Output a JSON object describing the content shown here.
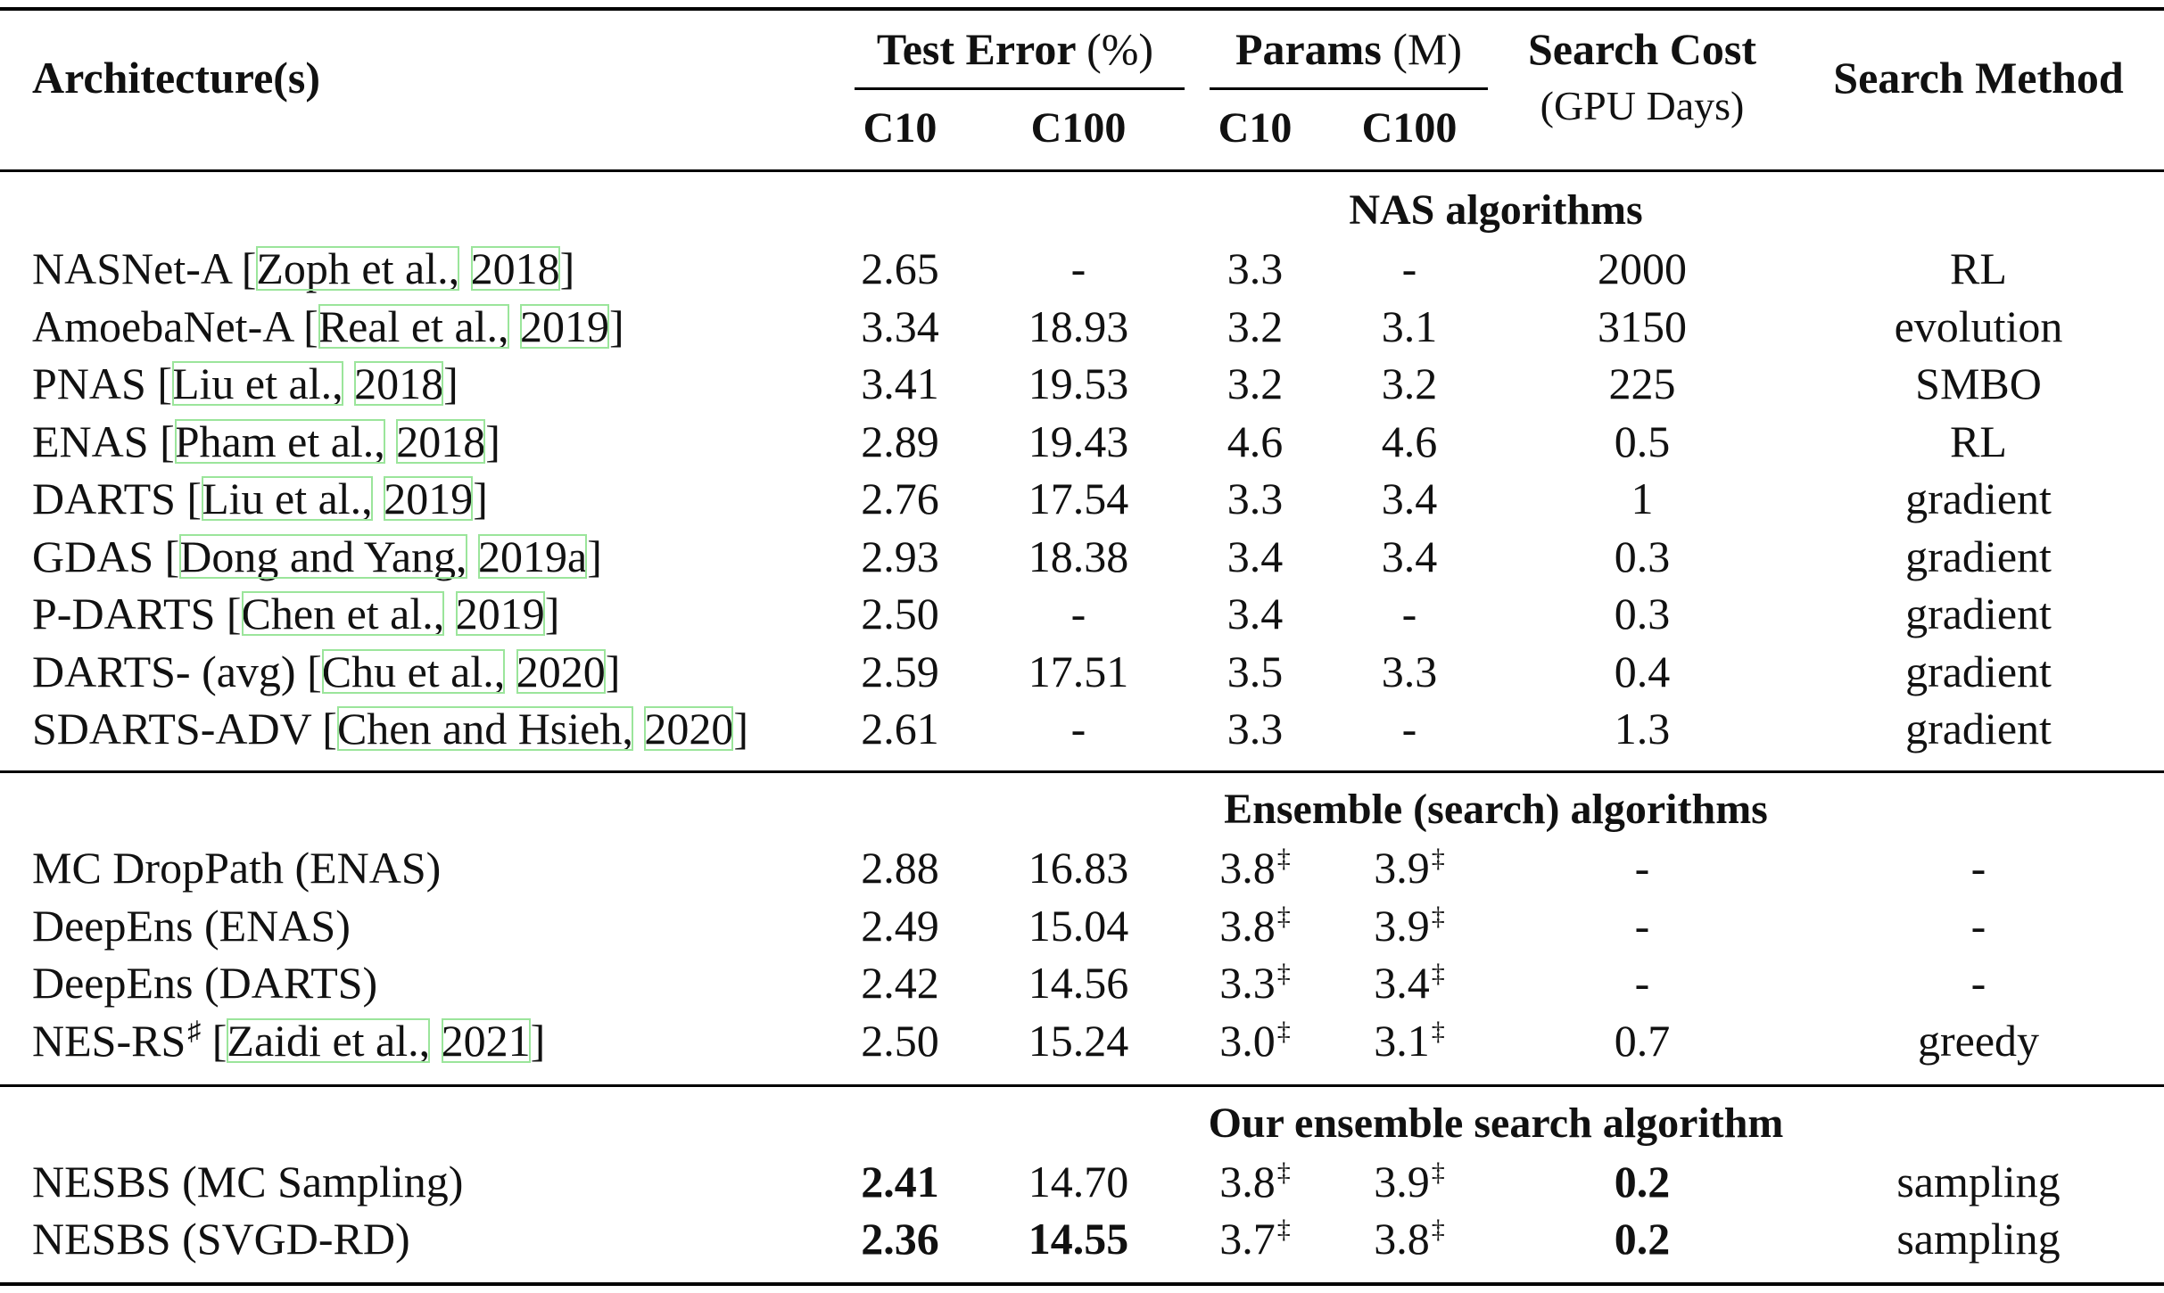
{
  "header": {
    "architecture": "Architecture(s)",
    "test_error_bold": "Test Error",
    "test_error_unit": "(%)",
    "params_bold": "Params",
    "params_unit": "(M)",
    "search_cost": "Search Cost",
    "search_cost_unit": "(GPU Days)",
    "search_method": "Search Method",
    "sub_c10_err": "C10",
    "sub_c100_err": "C100",
    "sub_c10_par": "C10",
    "sub_c100_par": "C100"
  },
  "sections": [
    {
      "title": "NAS algorithms",
      "rows": [
        {
          "name": "NASNet-A",
          "cite_a": "Zoph et al.,",
          "cite_b": "2018",
          "e10": "2.65",
          "e100": "-",
          "p10": "3.3",
          "p100": "-",
          "cost": "2000",
          "method": "RL"
        },
        {
          "name": "AmoebaNet-A",
          "cite_a": "Real et al.,",
          "cite_b": "2019",
          "e10": "3.34",
          "e100": "18.93",
          "p10": "3.2",
          "p100": "3.1",
          "cost": "3150",
          "method": "evolution"
        },
        {
          "name": "PNAS",
          "cite_a": "Liu et al.,",
          "cite_b": "2018",
          "e10": "3.41",
          "e100": "19.53",
          "p10": "3.2",
          "p100": "3.2",
          "cost": "225",
          "method": "SMBO"
        },
        {
          "name": "ENAS",
          "cite_a": "Pham et al.,",
          "cite_b": "2018",
          "e10": "2.89",
          "e100": "19.43",
          "p10": "4.6",
          "p100": "4.6",
          "cost": "0.5",
          "method": "RL"
        },
        {
          "name": "DARTS",
          "cite_a": "Liu et al.,",
          "cite_b": "2019",
          "e10": "2.76",
          "e100": "17.54",
          "p10": "3.3",
          "p100": "3.4",
          "cost": "1",
          "method": "gradient"
        },
        {
          "name": "GDAS",
          "cite_a": "Dong and Yang,",
          "cite_b": "2019a",
          "e10": "2.93",
          "e100": "18.38",
          "p10": "3.4",
          "p100": "3.4",
          "cost": "0.3",
          "method": "gradient"
        },
        {
          "name": "P-DARTS",
          "cite_a": "Chen et al.,",
          "cite_b": "2019",
          "e10": "2.50",
          "e100": "-",
          "p10": "3.4",
          "p100": "-",
          "cost": "0.3",
          "method": "gradient"
        },
        {
          "name": "DARTS- (avg)",
          "cite_a": "Chu et al.,",
          "cite_b": "2020",
          "e10": "2.59",
          "e100": "17.51",
          "p10": "3.5",
          "p100": "3.3",
          "cost": "0.4",
          "method": "gradient"
        },
        {
          "name": "SDARTS-ADV",
          "cite_a": "Chen and Hsieh,",
          "cite_b": "2020",
          "e10": "2.61",
          "e100": "-",
          "p10": "3.3",
          "p100": "-",
          "cost": "1.3",
          "method": "gradient"
        }
      ]
    },
    {
      "title": "Ensemble (search) algorithms",
      "rows": [
        {
          "name": "MC DropPath (ENAS)",
          "e10": "2.88",
          "e100": "16.83",
          "p10": "3.8",
          "p10_sup": "‡",
          "p100": "3.9",
          "p100_sup": "‡",
          "cost": "-",
          "method": "-"
        },
        {
          "name": "DeepEns (ENAS)",
          "e10": "2.49",
          "e100": "15.04",
          "p10": "3.8",
          "p10_sup": "‡",
          "p100": "3.9",
          "p100_sup": "‡",
          "cost": "-",
          "method": "-"
        },
        {
          "name": "DeepEns (DARTS)",
          "e10": "2.42",
          "e100": "14.56",
          "p10": "3.3",
          "p10_sup": "‡",
          "p100": "3.4",
          "p100_sup": "‡",
          "cost": "-",
          "method": "-"
        },
        {
          "name": "NES-RS",
          "name_sup": "♯",
          "cite_a": "Zaidi et al.,",
          "cite_b": "2021",
          "e10": "2.50",
          "e100": "15.24",
          "p10": "3.0",
          "p10_sup": "‡",
          "p100": "3.1",
          "p100_sup": "‡",
          "cost": "0.7",
          "method": "greedy"
        }
      ]
    },
    {
      "title": "Our ensemble search algorithm",
      "rows": [
        {
          "name": "NESBS (MC Sampling)",
          "e10": "2.41",
          "e10_bold": true,
          "e100": "14.70",
          "p10": "3.8",
          "p10_sup": "‡",
          "p100": "3.9",
          "p100_sup": "‡",
          "cost": "0.2",
          "cost_bold": true,
          "method": "sampling"
        },
        {
          "name": "NESBS (SVGD-RD)",
          "e10": "2.36",
          "e10_bold": true,
          "e100": "14.55",
          "e100_bold": true,
          "p10": "3.7",
          "p10_sup": "‡",
          "p100": "3.8",
          "p100_sup": "‡",
          "cost": "0.2",
          "cost_bold": true,
          "method": "sampling"
        }
      ]
    }
  ]
}
